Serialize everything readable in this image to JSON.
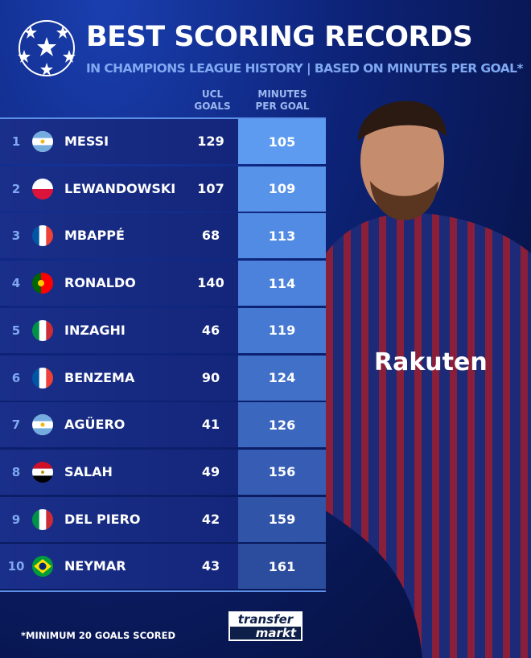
{
  "header": {
    "title": "BEST SCORING RECORDS",
    "subtitle": "IN CHAMPIONS LEAGUE HISTORY | BASED ON MINUTES PER GOAL*"
  },
  "columns": {
    "goals": "UCL\nGOALS",
    "goals_l1": "UCL",
    "goals_l2": "GOALS",
    "mpg_l1": "MINUTES",
    "mpg_l2": "PER GOAL"
  },
  "rows": [
    {
      "rank": "1",
      "flag": "argentina",
      "name": "MESSI",
      "goals": "129",
      "mpg": "105",
      "color": "#5d9bf0"
    },
    {
      "rank": "2",
      "flag": "poland",
      "name": "LEWANDOWSKI",
      "goals": "107",
      "mpg": "109",
      "color": "#5893ea"
    },
    {
      "rank": "3",
      "flag": "france",
      "name": "MBAPPÉ",
      "goals": "68",
      "mpg": "113",
      "color": "#528be3"
    },
    {
      "rank": "4",
      "flag": "portugal",
      "name": "RONALDO",
      "goals": "140",
      "mpg": "114",
      "color": "#4c82dc"
    },
    {
      "rank": "5",
      "flag": "italy",
      "name": "INZAGHI",
      "goals": "46",
      "mpg": "119",
      "color": "#4679d2"
    },
    {
      "rank": "6",
      "flag": "france",
      "name": "BENZEMA",
      "goals": "90",
      "mpg": "124",
      "color": "#4170c8"
    },
    {
      "rank": "7",
      "flag": "argentina",
      "name": "AGÜERO",
      "goals": "41",
      "mpg": "126",
      "color": "#3b67be"
    },
    {
      "rank": "8",
      "flag": "egypt",
      "name": "SALAH",
      "goals": "49",
      "mpg": "156",
      "color": "#365db3"
    },
    {
      "rank": "9",
      "flag": "italy",
      "name": "DEL PIERO",
      "goals": "42",
      "mpg": "159",
      "color": "#3054a8"
    },
    {
      "rank": "10",
      "flag": "brazil",
      "name": "NEYMAR",
      "goals": "43",
      "mpg": "161",
      "color": "#2c4c9e"
    }
  ],
  "footnote": "*MINIMUM 20 GOALS SCORED",
  "brand": {
    "line1": "transfer",
    "line2": "markt"
  },
  "player_shirt_text": "Rakuten"
}
